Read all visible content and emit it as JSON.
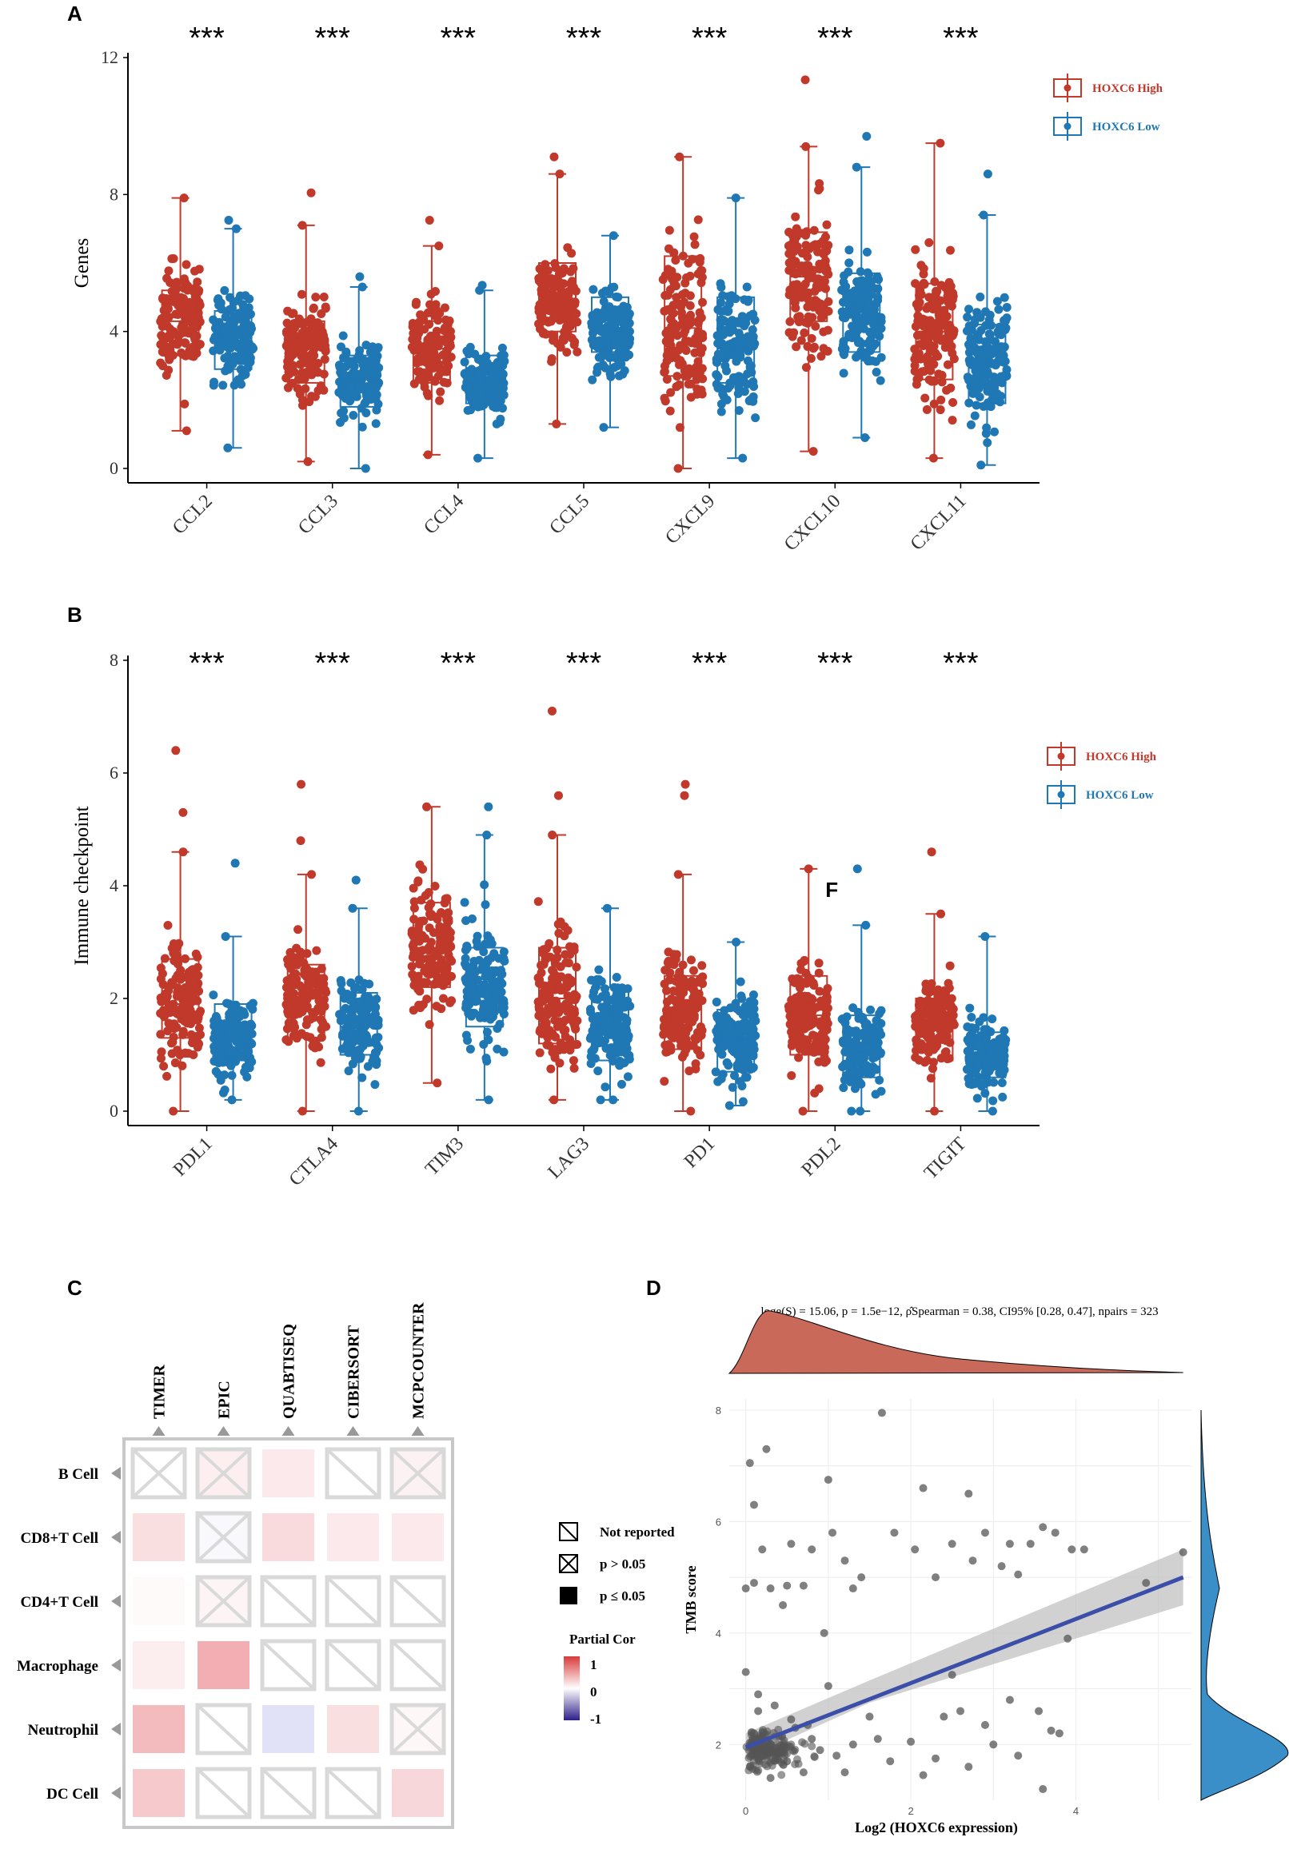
{
  "colors": {
    "high": "#C0392B",
    "low": "#1F77B4",
    "scatter": "#555555",
    "fit": "#3B4FA8"
  },
  "chart_data": [
    {
      "panel": "A",
      "type": "box",
      "ylabel": "Genes",
      "ylim": [
        0,
        12
      ],
      "yticks": [
        0,
        4,
        8,
        12
      ],
      "categories": [
        "CCL2",
        "CCL3",
        "CCL4",
        "CCL5",
        "CXCL9",
        "CXCL10",
        "CXCL11"
      ],
      "significance": [
        "***",
        "***",
        "***",
        "***",
        "***",
        "***",
        "***"
      ],
      "legend": [
        "HOXC6 High",
        "HOXC6 Low"
      ],
      "series": [
        {
          "name": "HOXC6 High",
          "min": [
            1.1,
            0.2,
            0.4,
            1.3,
            0.0,
            0.5,
            0.3
          ],
          "q1": [
            3.3,
            2.5,
            2.5,
            4.0,
            2.7,
            4.3,
            2.6
          ],
          "median": [
            4.3,
            3.5,
            3.5,
            4.8,
            4.1,
            5.6,
            4.0
          ],
          "q3": [
            5.2,
            4.3,
            4.3,
            6.0,
            6.2,
            6.9,
            5.4
          ],
          "max": [
            7.9,
            7.1,
            6.5,
            8.6,
            9.1,
            9.4,
            9.5
          ],
          "outliers": [
            [],
            [
              8.05
            ],
            [
              7.25
            ],
            [
              9.1
            ],
            [],
            [
              11.35
            ],
            []
          ]
        },
        {
          "name": "HOXC6 Low",
          "min": [
            0.6,
            0.0,
            0.3,
            1.2,
            0.3,
            0.9,
            0.1
          ],
          "q1": [
            2.9,
            1.8,
            1.9,
            3.4,
            2.5,
            3.4,
            1.9
          ],
          "median": [
            3.8,
            2.6,
            2.5,
            4.0,
            3.5,
            4.5,
            3.1
          ],
          "q3": [
            4.6,
            3.3,
            3.3,
            5.0,
            5.0,
            5.7,
            4.2
          ],
          "max": [
            7.0,
            5.3,
            5.2,
            6.8,
            7.9,
            8.8,
            7.4
          ],
          "outliers": [
            [
              7.25
            ],
            [
              5.6
            ],
            [
              5.35
            ],
            [],
            [],
            [
              9.7
            ],
            [
              8.6
            ]
          ]
        }
      ]
    },
    {
      "panel": "B",
      "type": "box",
      "ylabel": "Immune checkpoint",
      "ylim": [
        0,
        8
      ],
      "yticks": [
        0,
        2,
        4,
        6,
        8
      ],
      "categories": [
        "PDL1",
        "CTLA4",
        "TIM3",
        "LAG3",
        "PD1",
        "PDL2",
        "TIGIT"
      ],
      "significance": [
        "***",
        "***",
        "***",
        "***",
        "***",
        "***",
        "***"
      ],
      "legend": [
        "HOXC6 High",
        "HOXC6 Low"
      ],
      "annotation": "F",
      "series": [
        {
          "name": "HOXC6 High",
          "min": [
            0.0,
            0.0,
            0.5,
            0.2,
            0.0,
            0.0,
            0.0
          ],
          "q1": [
            1.3,
            1.3,
            2.2,
            1.2,
            1.1,
            1.0,
            0.9
          ],
          "median": [
            1.9,
            2.0,
            2.9,
            2.0,
            1.8,
            1.7,
            1.6
          ],
          "q3": [
            2.7,
            2.6,
            3.7,
            2.9,
            2.4,
            2.4,
            2.0
          ],
          "max": [
            4.6,
            4.2,
            5.4,
            4.9,
            4.2,
            4.3,
            3.5
          ],
          "outliers": [
            [
              5.3,
              6.4
            ],
            [
              4.8,
              5.8
            ],
            [],
            [
              7.1,
              5.6
            ],
            [
              5.6,
              5.8
            ],
            [],
            [
              4.6
            ]
          ]
        },
        {
          "name": "HOXC6 Low",
          "min": [
            0.2,
            0.0,
            0.2,
            0.2,
            0.1,
            0.0,
            0.0
          ],
          "q1": [
            0.9,
            1.0,
            1.5,
            0.9,
            0.7,
            0.6,
            0.6
          ],
          "median": [
            1.3,
            1.5,
            2.3,
            1.5,
            1.3,
            1.1,
            1.0
          ],
          "q3": [
            1.9,
            2.1,
            2.9,
            2.2,
            1.8,
            1.7,
            1.4
          ],
          "max": [
            3.1,
            3.6,
            4.9,
            3.6,
            3.0,
            3.3,
            3.1
          ],
          "outliers": [
            [
              4.4
            ],
            [
              4.1
            ],
            [
              5.4
            ],
            [],
            [],
            [
              4.3
            ],
            []
          ]
        }
      ]
    },
    {
      "panel": "C",
      "type": "heatmap",
      "columns": [
        "TIMER",
        "EPIC",
        "QUABTISEQ",
        "CIBERSORT",
        "MCPCOUNTER"
      ],
      "rows": [
        "B Cell",
        "CD8+T Cell",
        "CD4+T Cell",
        "Macrophage",
        "Neutrophil",
        "DC Cell"
      ],
      "cells": [
        [
          {
            "status": "p>0.05",
            "value": 0.0
          },
          {
            "status": "p>0.05",
            "value": 0.15
          },
          {
            "status": "sig",
            "value": 0.12
          },
          {
            "status": "not_reported",
            "value": 0.0
          },
          {
            "status": "p>0.05",
            "value": 0.12
          }
        ],
        [
          {
            "status": "sig",
            "value": 0.18
          },
          {
            "status": "p>0.05",
            "value": -0.08
          },
          {
            "status": "sig",
            "value": 0.2
          },
          {
            "status": "sig",
            "value": 0.12
          },
          {
            "status": "sig",
            "value": 0.12
          }
        ],
        [
          {
            "status": "sig",
            "value": 0.03
          },
          {
            "status": "p>0.05",
            "value": 0.1
          },
          {
            "status": "not_reported",
            "value": 0.0
          },
          {
            "status": "not_reported",
            "value": 0.0
          },
          {
            "status": "not_reported",
            "value": 0.0
          }
        ],
        [
          {
            "status": "sig",
            "value": 0.1
          },
          {
            "status": "sig",
            "value": 0.45
          },
          {
            "status": "not_reported",
            "value": 0.0
          },
          {
            "status": "not_reported",
            "value": 0.0
          },
          {
            "status": "not_reported",
            "value": 0.0
          }
        ],
        [
          {
            "status": "sig",
            "value": 0.38
          },
          {
            "status": "not_reported",
            "value": 0.0
          },
          {
            "status": "sig",
            "value": -0.2
          },
          {
            "status": "sig",
            "value": 0.18
          },
          {
            "status": "p>0.05",
            "value": 0.08
          }
        ],
        [
          {
            "status": "sig",
            "value": 0.3
          },
          {
            "status": "not_reported",
            "value": 0.0
          },
          {
            "status": "not_reported",
            "value": 0.0
          },
          {
            "status": "not_reported",
            "value": 0.0
          },
          {
            "status": "sig",
            "value": 0.22
          }
        ]
      ],
      "legend_symbols": [
        "Not reported",
        "p > 0.05",
        "p ≤ 0.05"
      ],
      "colorbar": {
        "title": "Partial Cor",
        "ticks": [
          "1",
          "0",
          "-1"
        ]
      }
    },
    {
      "panel": "D",
      "type": "scatter",
      "xlabel": "Log2 (HOXC6 expression)",
      "ylabel": "TMB score",
      "xlim": [
        -0.2,
        5.4
      ],
      "ylim": [
        1.0,
        8.2
      ],
      "xticks": [
        0,
        2,
        4
      ],
      "yticks": [
        2,
        4,
        6,
        8
      ],
      "stats": "loge(S) = 15.06, p = 1.5e−12, ρ̂Spearman = 0.38, CI95% [0.28, 0.47], npairs = 323",
      "fit": {
        "x": [
          0,
          5.3
        ],
        "y": [
          1.95,
          5.0
        ]
      },
      "points": [
        [
          1.65,
          7.95
        ],
        [
          0.05,
          7.05
        ],
        [
          0.25,
          7.3
        ],
        [
          0.1,
          6.3
        ],
        [
          1.0,
          6.75
        ],
        [
          2.15,
          6.6
        ],
        [
          2.7,
          6.5
        ],
        [
          0.0,
          4.8
        ],
        [
          0.1,
          4.9
        ],
        [
          0.3,
          4.8
        ],
        [
          0.5,
          4.85
        ],
        [
          0.7,
          4.85
        ],
        [
          0.2,
          5.5
        ],
        [
          0.55,
          5.6
        ],
        [
          0.8,
          5.5
        ],
        [
          1.05,
          5.8
        ],
        [
          1.2,
          5.3
        ],
        [
          1.4,
          5.0
        ],
        [
          1.8,
          5.8
        ],
        [
          2.05,
          5.5
        ],
        [
          2.3,
          5.0
        ],
        [
          2.5,
          5.6
        ],
        [
          2.75,
          5.3
        ],
        [
          2.9,
          5.8
        ],
        [
          3.1,
          5.2
        ],
        [
          3.2,
          5.6
        ],
        [
          3.3,
          5.05
        ],
        [
          3.45,
          5.6
        ],
        [
          3.6,
          5.9
        ],
        [
          3.75,
          5.8
        ],
        [
          3.95,
          5.5
        ],
        [
          4.1,
          5.5
        ],
        [
          4.85,
          4.9
        ],
        [
          5.3,
          5.45
        ],
        [
          3.9,
          3.9
        ],
        [
          0.95,
          4.0
        ],
        [
          1.3,
          4.8
        ],
        [
          0.45,
          4.5
        ],
        [
          2.5,
          3.25
        ],
        [
          0.0,
          3.3
        ],
        [
          1.0,
          3.05
        ],
        [
          0.15,
          2.9
        ],
        [
          3.7,
          2.25
        ],
        [
          3.55,
          2.6
        ],
        [
          3.2,
          2.8
        ],
        [
          3.8,
          2.2
        ],
        [
          3.6,
          1.2
        ],
        [
          1.5,
          2.5
        ],
        [
          1.6,
          2.1
        ],
        [
          2.0,
          2.05
        ],
        [
          2.3,
          1.75
        ],
        [
          2.7,
          1.6
        ],
        [
          2.4,
          2.5
        ],
        [
          2.6,
          2.6
        ],
        [
          3.0,
          2.0
        ],
        [
          3.3,
          1.8
        ],
        [
          1.1,
          1.8
        ],
        [
          1.3,
          2.0
        ],
        [
          0.8,
          2.1
        ],
        [
          0.6,
          2.3
        ],
        [
          0.4,
          2.15
        ],
        [
          0.2,
          1.8
        ],
        [
          0.05,
          1.6
        ],
        [
          0.1,
          2.2
        ],
        [
          0.3,
          1.4
        ],
        [
          0.5,
          1.7
        ],
        [
          0.7,
          1.5
        ],
        [
          0.9,
          1.9
        ],
        [
          1.2,
          1.5
        ],
        [
          0.15,
          2.6
        ],
        [
          0.35,
          2.7
        ],
        [
          0.55,
          2.45
        ],
        [
          0.75,
          2.35
        ],
        [
          1.75,
          1.7
        ],
        [
          2.15,
          1.45
        ],
        [
          2.9,
          2.35
        ]
      ]
    }
  ]
}
